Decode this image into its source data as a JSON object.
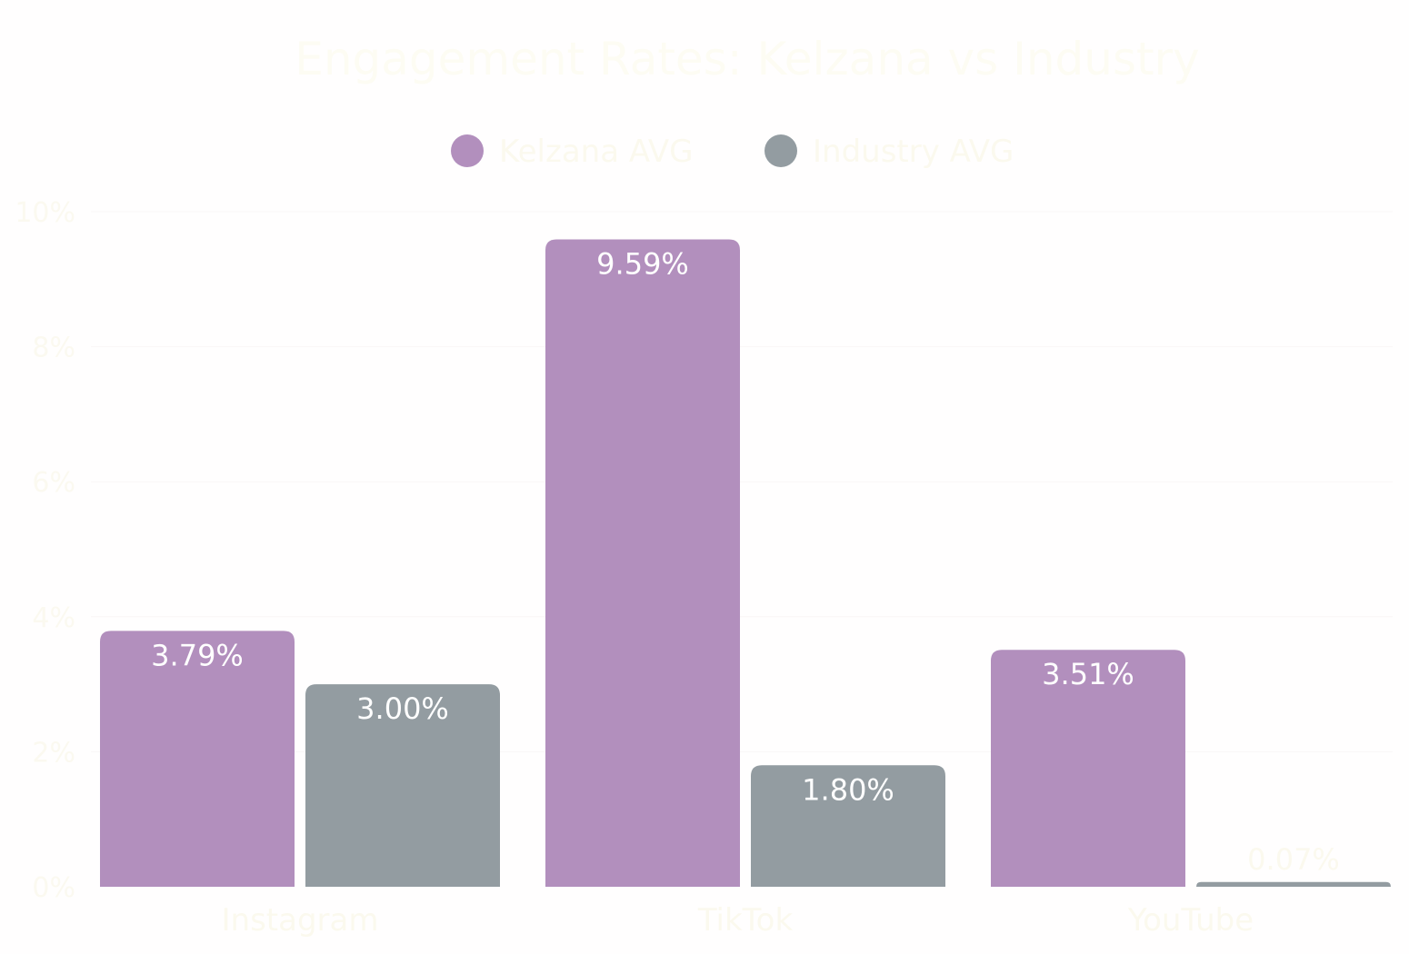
{
  "chart_data": {
    "type": "bar",
    "title": "Engagement Rates: Kelzana vs Industry",
    "categories": [
      "Instagram",
      "TikTok",
      "YouTube"
    ],
    "series": [
      {
        "name": "Kelzana AVG",
        "color": "#b28fbd",
        "values": [
          3.79,
          9.59,
          3.51
        ],
        "labels": [
          "3.79%",
          "9.59%",
          "3.51%"
        ]
      },
      {
        "name": "Industry AVG",
        "color": "#939ca1",
        "values": [
          3.0,
          1.8,
          0.07
        ],
        "labels": [
          "3.00%",
          "1.80%",
          "0.07%"
        ]
      }
    ],
    "y_ticks": [
      "0%",
      "2%",
      "4%",
      "6%",
      "8%",
      "10%"
    ],
    "y_tick_values": [
      0,
      2,
      4,
      6,
      8,
      10
    ],
    "ylim": [
      0,
      10
    ],
    "ylabel": "",
    "xlabel": "",
    "grid": true,
    "legend": "top-center"
  }
}
